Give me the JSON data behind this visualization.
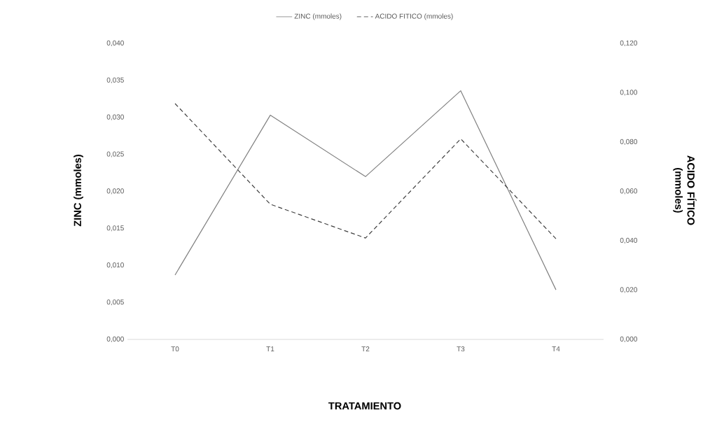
{
  "chart_data": {
    "type": "line",
    "xlabel": "TRATAMIENTO",
    "ylabel": "ZINC (mmoles)",
    "y2label": "ACIDO FÍTICO (mmoles)",
    "categories": [
      "T0",
      "T1",
      "T2",
      "T3",
      "T4"
    ],
    "series": [
      {
        "name": "ZINC (mmoles)",
        "color": "#808080",
        "line_style": "solid",
        "axis": "y",
        "values": [
          0.0087,
          0.0303,
          0.022,
          0.0336,
          0.0067
        ]
      },
      {
        "name": "ACIDO FITICO (mmoles)",
        "color": "#404040",
        "line_style": "dashed",
        "axis": "y2",
        "values": [
          0.0956,
          0.0548,
          0.0411,
          0.0813,
          0.0408
        ]
      }
    ],
    "ylim": [
      0,
      0.04
    ],
    "yticks": [
      {
        "value": 0,
        "label": "0,000"
      },
      {
        "value": 0.005,
        "label": "0,005"
      },
      {
        "value": 0.01,
        "label": "0,010"
      },
      {
        "value": 0.015,
        "label": "0,015"
      },
      {
        "value": 0.02,
        "label": "0,020"
      },
      {
        "value": 0.025,
        "label": "0,025"
      },
      {
        "value": 0.03,
        "label": "0,030"
      },
      {
        "value": 0.035,
        "label": "0,035"
      },
      {
        "value": 0.04,
        "label": "0,040"
      }
    ],
    "y2lim": [
      0,
      0.12
    ],
    "y2ticks": [
      {
        "value": 0,
        "label": "0,000"
      },
      {
        "value": 0.02,
        "label": "0,020"
      },
      {
        "value": 0.04,
        "label": "0,040"
      },
      {
        "value": 0.06,
        "label": "0,060"
      },
      {
        "value": 0.08,
        "label": "0,080"
      },
      {
        "value": 0.1,
        "label": "0,100"
      },
      {
        "value": 0.12,
        "label": "0,120"
      }
    ],
    "legend": "top",
    "marker": "none",
    "grid": false
  }
}
